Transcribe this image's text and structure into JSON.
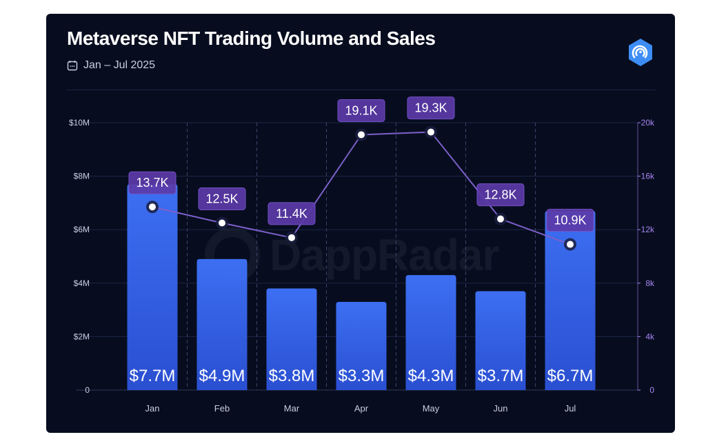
{
  "header": {
    "title": "Metaverse NFT Trading Volume and Sales",
    "date_range": "Jan – Jul 2025"
  },
  "watermark": {
    "text": "DappRadar"
  },
  "colors": {
    "background": "#070d1f",
    "bar_top": "#3d6ff2",
    "bar_bottom": "#2a4fd1",
    "line": "#7c5fc9",
    "label_bg": "#5b3aa8",
    "right_axis_text": "#a884f2",
    "left_axis_text": "#c9cde0",
    "logo": "#3d8df5"
  },
  "icons": {
    "calendar": "calendar-icon",
    "logo": "dappradar-logo-icon"
  },
  "chart_data": {
    "type": "bar",
    "categories": [
      "Jan",
      "Feb",
      "Mar",
      "Apr",
      "May",
      "Jun",
      "Jul"
    ],
    "series": [
      {
        "values": [
          7.7,
          4.9,
          3.8,
          3.3,
          4.3,
          3.7,
          6.7
        ],
        "labels": [
          "$7.7M",
          "$4.9M",
          "$3.8M",
          "$3.3M",
          "$4.3M",
          "$3.7M",
          "$6.7M"
        ],
        "axis": "left",
        "kind": "bar"
      },
      {
        "values": [
          13.7,
          12.5,
          11.4,
          19.1,
          19.3,
          12.8,
          10.9
        ],
        "labels": [
          "13.7K",
          "12.5K",
          "11.4K",
          "19.1K",
          "19.3K",
          "12.8K",
          "10.9K"
        ],
        "axis": "right",
        "kind": "line"
      }
    ],
    "left_axis": {
      "ylim": [
        0,
        10
      ],
      "ticks": [
        0,
        2,
        4,
        6,
        8,
        10
      ],
      "tick_labels": [
        "0",
        "$2M",
        "$4M",
        "$6M",
        "$8M",
        "$10M"
      ]
    },
    "right_axis": {
      "ylim": [
        0,
        20
      ],
      "ticks": [
        0,
        4,
        8,
        12,
        16,
        20
      ],
      "tick_labels": [
        "0",
        "4k",
        "8k",
        "12k",
        "16k",
        "20k"
      ]
    },
    "grid": true,
    "legend": "none"
  }
}
